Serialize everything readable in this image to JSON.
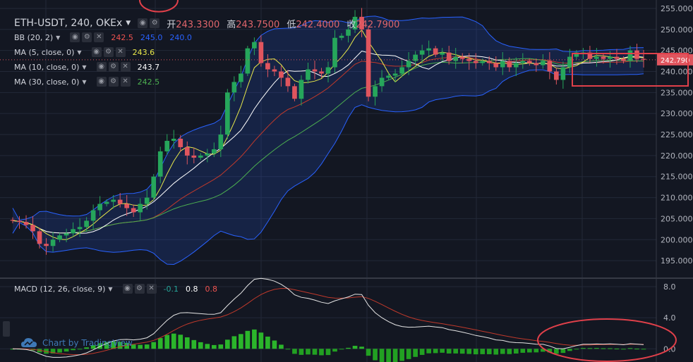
{
  "header": {
    "symbol": "ETH-USDT, 240, OKEx",
    "ohlc": [
      {
        "k": "开",
        "v": "243.3300"
      },
      {
        "k": "高",
        "v": "243.7500"
      },
      {
        "k": "低",
        "v": "242.4000"
      },
      {
        "k": "收",
        "v": "242.7900"
      }
    ]
  },
  "indicators": [
    {
      "label": "BB (20, 2)",
      "values": [
        "242.5",
        "245.0",
        "240.0"
      ],
      "colors": [
        "#ef5350",
        "#2962ff",
        "#2962ff"
      ]
    },
    {
      "label": "MA (5, close, 0)",
      "values": [
        "243.6"
      ],
      "colors": [
        "#e8e84a"
      ]
    },
    {
      "label": "MA (10, close, 0)",
      "values": [
        "243.7"
      ],
      "colors": [
        "#ffffff"
      ]
    },
    {
      "label": "MA (30, close, 0)",
      "values": [
        "242.5"
      ],
      "colors": [
        "#4caf50"
      ]
    }
  ],
  "macd": {
    "label": "MACD (12, 26, close, 9)",
    "values": [
      "-0.1",
      "0.8",
      "0.8"
    ],
    "colors": [
      "#26a69a",
      "#ffffff",
      "#ef5350"
    ]
  },
  "watermark": "Chart by TradingView",
  "chart_data": [
    {
      "type": "candlestick",
      "title": "ETH-USDT, 240, OKEx",
      "ylim": [
        191.0,
        257.0
      ],
      "yticks": [
        "195.000",
        "200.000",
        "205.000",
        "210.000",
        "215.000",
        "220.000",
        "225.000",
        "230.000",
        "235.000",
        "240.000",
        "245.000",
        "250.000",
        "255.000"
      ],
      "last_price": "242.790",
      "close": [
        204.5,
        204.2,
        203.5,
        202.0,
        199.0,
        198.5,
        200.0,
        201.0,
        201.5,
        202.5,
        203.0,
        204.5,
        207.0,
        208.5,
        209.0,
        209.5,
        208.5,
        207.5,
        206.5,
        208.5,
        210.0,
        215.0,
        221.0,
        223.5,
        224.0,
        222.0,
        220.0,
        219.5,
        220.0,
        220.5,
        221.5,
        225.0,
        235.0,
        237.5,
        239.5,
        245.5,
        247.0,
        242.0,
        240.5,
        240.0,
        238.5,
        236.5,
        233.5,
        238.0,
        240.5,
        240.0,
        239.5,
        241.0,
        248.0,
        248.5,
        250.0,
        253.0,
        250.0,
        234.0,
        236.5,
        238.5,
        239.0,
        239.5,
        241.0,
        242.5,
        244.0,
        245.0,
        245.5,
        244.0,
        244.5,
        242.5,
        243.5,
        243.0,
        242.5,
        242.0,
        242.5,
        242.0,
        241.0,
        242.5,
        241.0,
        242.0,
        242.5,
        242.0,
        241.5,
        242.5,
        240.0,
        238.0,
        241.0,
        243.5,
        244.5,
        244.5,
        243.0,
        243.5,
        243.0,
        243.5,
        243.0,
        242.5,
        245.0,
        243.0,
        242.79
      ],
      "series": [
        {
          "name": "BB (20, 2)",
          "color": "#2962ff"
        },
        {
          "name": "MA (5, close, 0)",
          "color": "#e8e84a"
        },
        {
          "name": "MA (10, close, 0)",
          "color": "#ffffff"
        },
        {
          "name": "MA (30, close, 0)",
          "color": "#4caf50"
        }
      ],
      "colors": {
        "up": "#26a65b",
        "down": "#e0555e",
        "annotation": "#e0404a"
      }
    },
    {
      "type": "bar+line",
      "title": "MACD (12, 26, close, 9)",
      "ylim": [
        -1.7,
        9.0
      ],
      "yticks": [
        "0.0",
        "4.0",
        "8.0"
      ]
    }
  ]
}
